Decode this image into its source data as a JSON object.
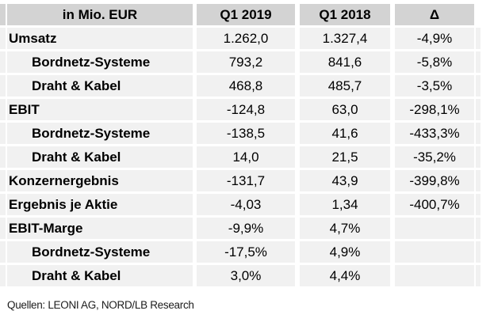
{
  "chart_data": {
    "type": "table",
    "title": "",
    "unit_header": "in Mio. EUR",
    "columns": [
      "in Mio. EUR",
      "Q1 2019",
      "Q1 2018",
      "Δ"
    ],
    "rows": [
      {
        "label": "Umsatz",
        "indent": false,
        "q1_2019": "1.262,0",
        "q1_2018": "1.327,4",
        "delta": "-4,9%"
      },
      {
        "label": "Bordnetz-Systeme",
        "indent": true,
        "q1_2019": "793,2",
        "q1_2018": "841,6",
        "delta": "-5,8%"
      },
      {
        "label": "Draht & Kabel",
        "indent": true,
        "q1_2019": "468,8",
        "q1_2018": "485,7",
        "delta": "-3,5%"
      },
      {
        "label": "EBIT",
        "indent": false,
        "q1_2019": "-124,8",
        "q1_2018": "63,0",
        "delta": "-298,1%"
      },
      {
        "label": "Bordnetz-Systeme",
        "indent": true,
        "q1_2019": "-138,5",
        "q1_2018": "41,6",
        "delta": "-433,3%"
      },
      {
        "label": "Draht & Kabel",
        "indent": true,
        "q1_2019": "14,0",
        "q1_2018": "21,5",
        "delta": "-35,2%"
      },
      {
        "label": "Konzernergebnis",
        "indent": false,
        "q1_2019": "-131,7",
        "q1_2018": "43,9",
        "delta": "-399,8%"
      },
      {
        "label": "Ergebnis je Aktie",
        "indent": false,
        "q1_2019": "-4,03",
        "q1_2018": "1,34",
        "delta": "-400,7%"
      },
      {
        "label": "EBIT-Marge",
        "indent": false,
        "q1_2019": "-9,9%",
        "q1_2018": "4,7%",
        "delta": ""
      },
      {
        "label": "Bordnetz-Systeme",
        "indent": true,
        "q1_2019": "-17,5%",
        "q1_2018": "4,9%",
        "delta": ""
      },
      {
        "label": "Draht & Kabel",
        "indent": true,
        "q1_2019": "3,0%",
        "q1_2018": "4,4%",
        "delta": ""
      }
    ],
    "source": "Quellen: LEONI AG, NORD/LB Research"
  },
  "colors": {
    "header_bg": "#d3d3d3",
    "row_bg": "#f1f1f1",
    "gridline": "#ffffff",
    "text": "#000000"
  }
}
